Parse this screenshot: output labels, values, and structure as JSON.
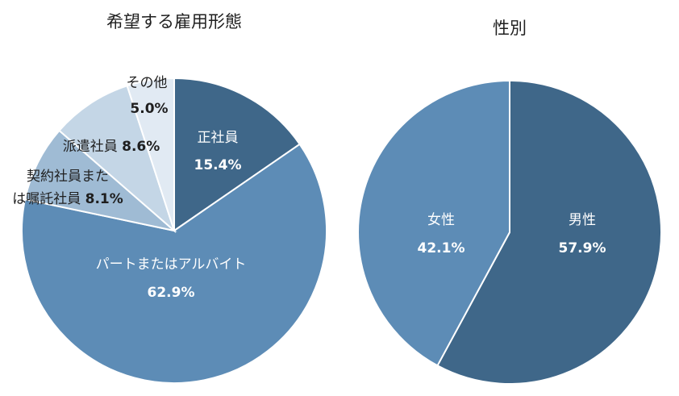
{
  "chart_data": [
    {
      "type": "pie",
      "title": "希望する雇用形態",
      "slices": [
        {
          "label": "正社員",
          "value": 15.4,
          "value_label": "15.4%",
          "color": "#3f6789",
          "text_color": "#ffffff"
        },
        {
          "label": "パートまたはアルバイト",
          "value": 62.9,
          "value_label": "62.9%",
          "color": "#5d8cb6",
          "text_color": "#ffffff"
        },
        {
          "label": "契約社員または嘱託社員",
          "value": 8.1,
          "value_label": "8.1%",
          "color": "#9fbbd4",
          "text_color": "#1f1f1f"
        },
        {
          "label": "派遣社員",
          "value": 8.6,
          "value_label": "8.6%",
          "color": "#c4d6e6",
          "text_color": "#1f1f1f"
        },
        {
          "label": "その他",
          "value": 5.0,
          "value_label": "5.0%",
          "color": "#e1eaf3",
          "text_color": "#1f1f1f"
        }
      ]
    },
    {
      "type": "pie",
      "title": "性別",
      "slices": [
        {
          "label": "男性",
          "value": 57.9,
          "value_label": "57.9%",
          "color": "#3f6789",
          "text_color": "#ffffff"
        },
        {
          "label": "女性",
          "value": 42.1,
          "value_label": "42.1%",
          "color": "#5d8cb6",
          "text_color": "#ffffff"
        }
      ]
    }
  ]
}
